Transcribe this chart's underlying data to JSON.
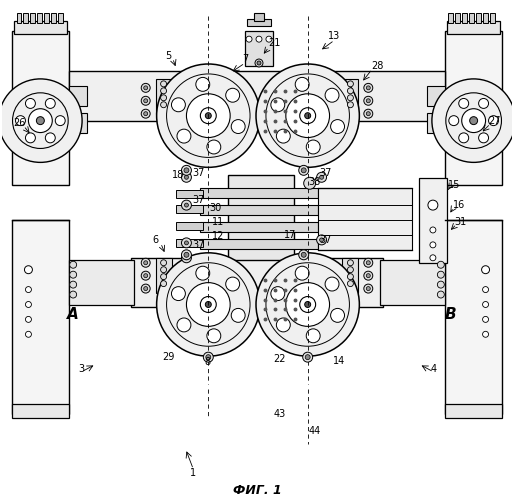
{
  "title": "ФИГ. 1",
  "background_color": "#ffffff",
  "line_color": "#000000",
  "figure_width": 5.14,
  "figure_height": 5.0,
  "dpi": 100
}
